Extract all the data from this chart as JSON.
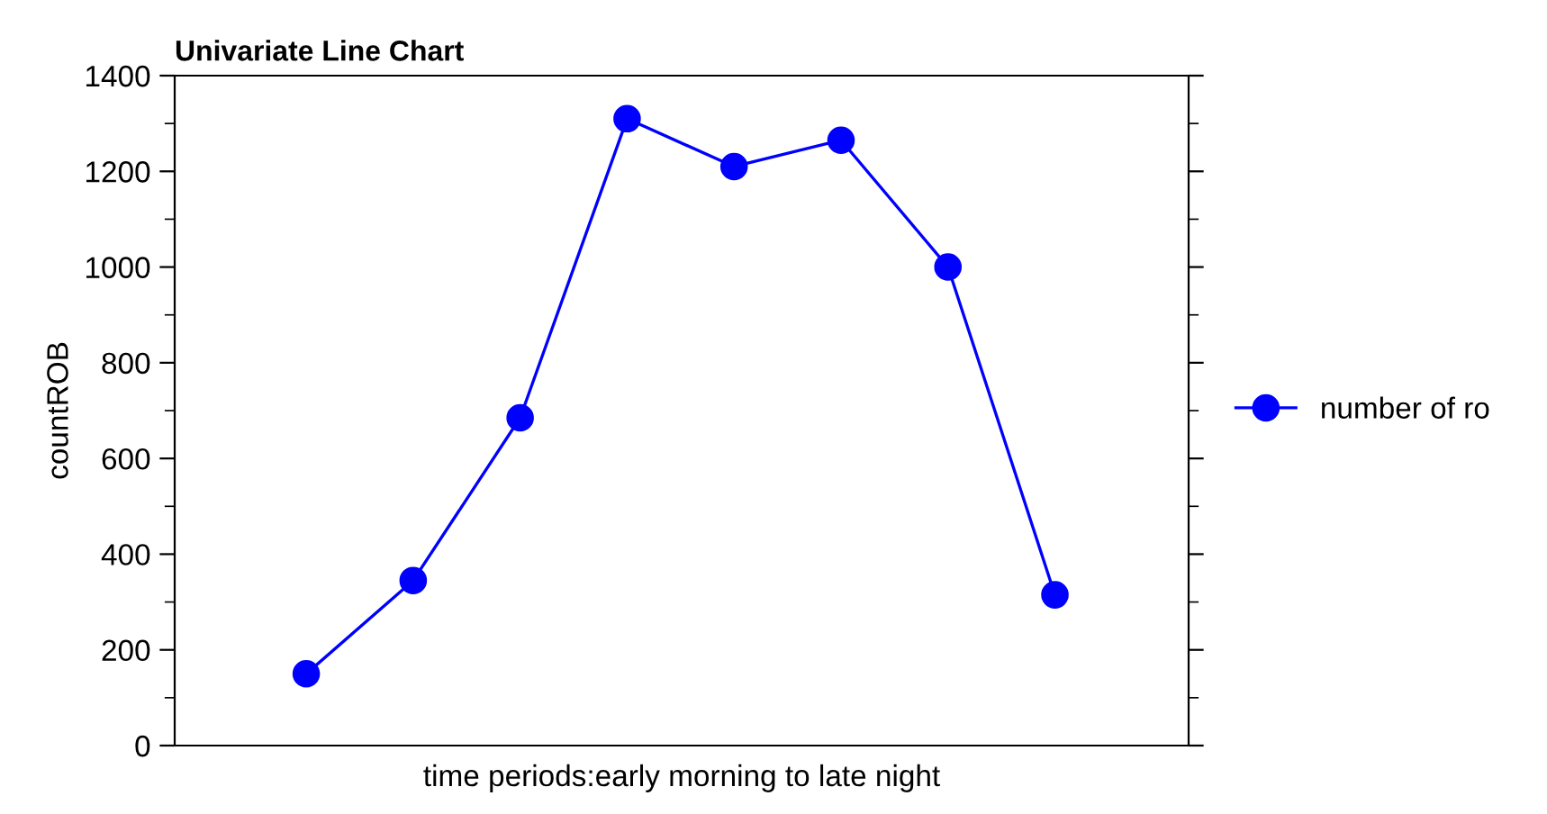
{
  "chart_data": {
    "type": "line",
    "title": "Univariate Line Chart",
    "xlabel": "time periods:early morning to late night",
    "ylabel": "countROB",
    "categories": [
      null,
      null,
      null,
      null,
      null,
      null,
      null,
      null
    ],
    "series": [
      {
        "name": "number of ro",
        "color": "#0000ff",
        "values": [
          150,
          345,
          685,
          1310,
          1210,
          1265,
          1000,
          315
        ]
      }
    ],
    "ylim": [
      0,
      1400
    ],
    "yticks": [
      0,
      {
        "value": 100,
        "label": null
      },
      200,
      {
        "value": 300,
        "label": null
      },
      400,
      {
        "value": 500,
        "label": null
      },
      600,
      {
        "value": 700,
        "label": null
      },
      800,
      {
        "value": 900,
        "label": null
      },
      1000,
      {
        "value": 1100,
        "label": null
      },
      1200,
      {
        "value": 1300,
        "label": null
      },
      1400
    ],
    "grid": false,
    "legend": "right",
    "marker": "circle",
    "line_style": "solid"
  }
}
